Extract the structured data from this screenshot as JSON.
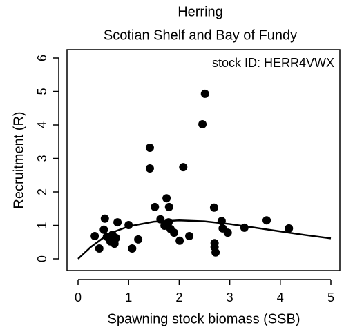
{
  "chart_data": {
    "type": "scatter",
    "title": "Herring",
    "subtitle": "Scotian Shelf and Bay of Fundy",
    "annotation": "stock ID: HERR4VWX",
    "x_label": "Spawning stock biomass (SSB)",
    "y_label": "Recruitment (R)",
    "color": "#000000",
    "x": [
      0.33,
      0.42,
      0.53,
      0.51,
      0.57,
      0.64,
      0.68,
      0.72,
      0.78,
      0.75,
      1.0,
      1.07,
      1.19,
      1.42,
      1.42,
      1.52,
      1.63,
      1.71,
      1.75,
      1.8,
      1.79,
      1.83,
      1.9,
      2.01,
      2.08,
      2.2,
      2.46,
      2.51,
      2.69,
      2.7,
      2.7,
      2.72,
      2.84,
      2.86,
      2.96,
      3.29,
      3.73,
      4.17
    ],
    "values": [
      0.68,
      0.31,
      1.2,
      0.87,
      0.66,
      0.52,
      0.72,
      0.45,
      1.09,
      0.62,
      1.01,
      0.31,
      0.58,
      3.32,
      2.7,
      1.55,
      1.18,
      0.99,
      1.81,
      1.55,
      1.09,
      0.89,
      0.78,
      0.54,
      2.74,
      0.68,
      4.02,
      4.93,
      1.53,
      0.47,
      0.35,
      0.19,
      1.13,
      0.91,
      0.78,
      0.93,
      1.15,
      0.91
    ],
    "fit": {
      "x": [
        0,
        0.25,
        0.5,
        0.75,
        1,
        1.5,
        2,
        2.5,
        3,
        3.5,
        4,
        4.5,
        5
      ],
      "values": [
        0,
        0.35,
        0.63,
        0.83,
        0.97,
        1.11,
        1.15,
        1.12,
        1.04,
        0.93,
        0.82,
        0.71,
        0.61
      ]
    },
    "xlim": [
      0,
      5
    ],
    "ylim": [
      0,
      6
    ],
    "xticks": [
      0,
      1,
      2,
      3,
      4,
      5
    ],
    "yticks": [
      0,
      1,
      2,
      3,
      4,
      5,
      6
    ]
  }
}
